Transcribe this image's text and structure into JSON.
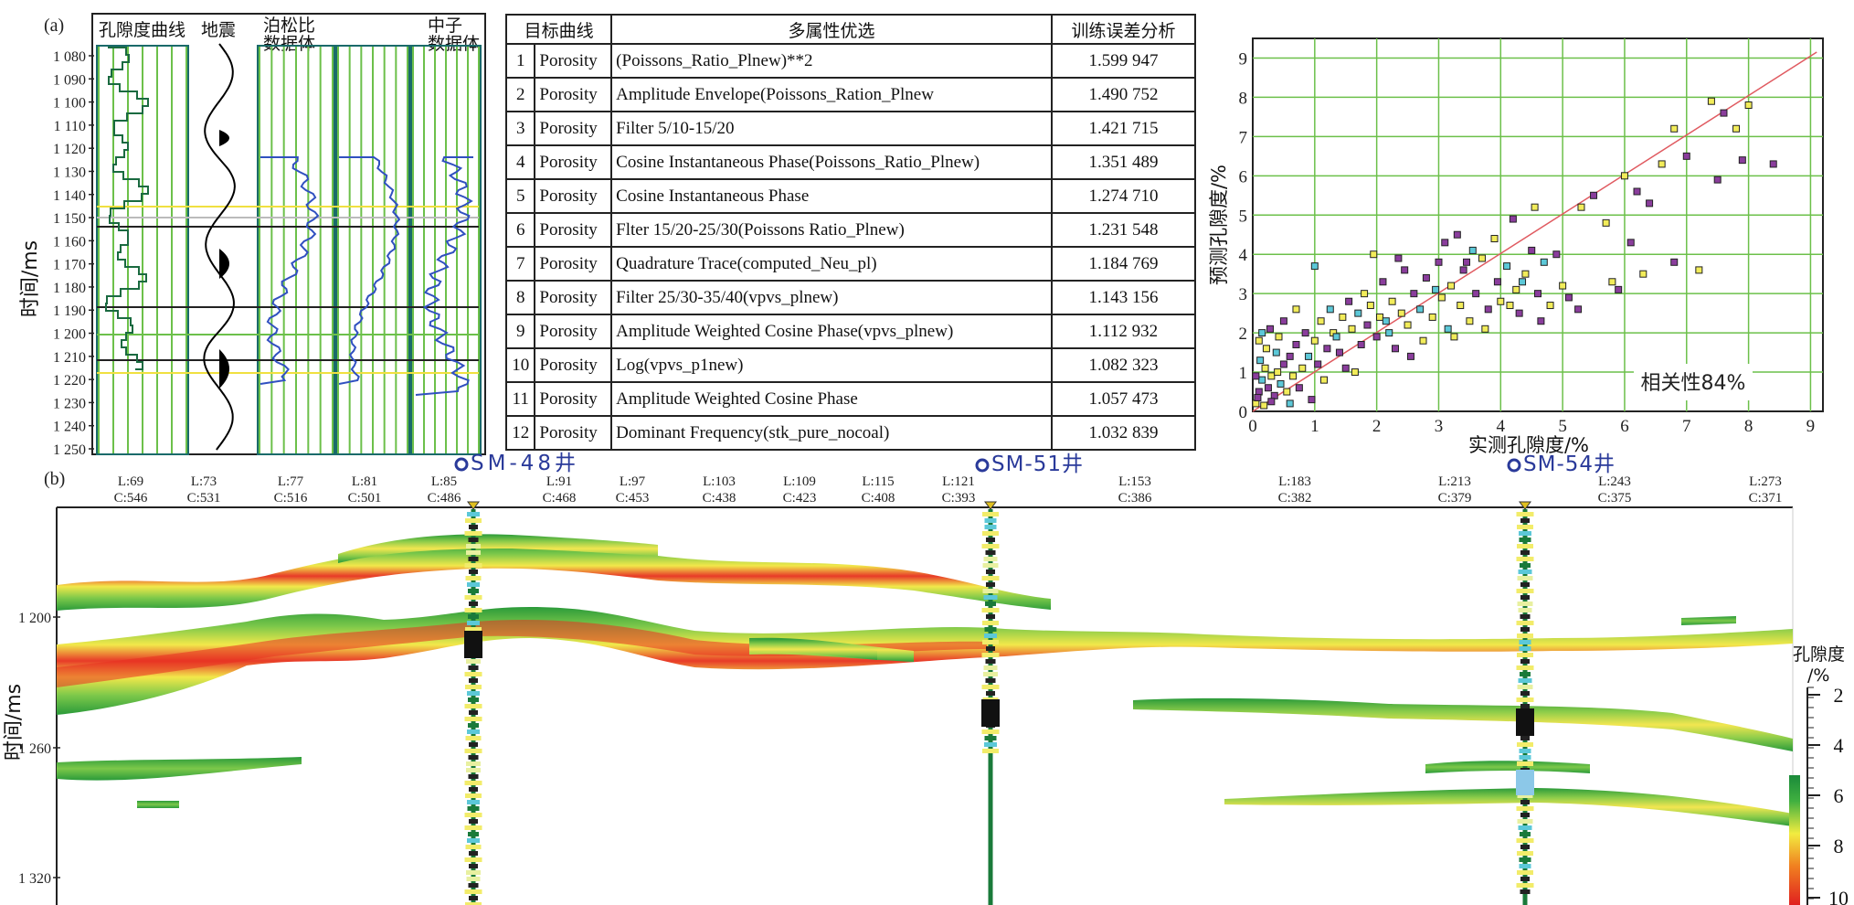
{
  "panel_a": {
    "label": "(a)",
    "log_headers": [
      "孔隙度曲线",
      "地震",
      "泊松比\n数据体",
      "中子\n数据体"
    ],
    "time_axis_label": "时间/ms",
    "time_ticks": [
      "1 080",
      "1 090",
      "1 100",
      "1 110",
      "1 120",
      "1 130",
      "1 140",
      "1 150",
      "1 160",
      "1 170",
      "1 180",
      "1 190",
      "1 200",
      "1 210",
      "1 220",
      "1 230",
      "1 240",
      "1 250"
    ]
  },
  "table": {
    "headers": [
      "目标曲线",
      "多属性优选",
      "训练误差分析"
    ],
    "rows": [
      {
        "n": "1",
        "curve": "Porosity",
        "attr": "(Poissons_Ratio_Plnew)**2",
        "err": "1.599 947"
      },
      {
        "n": "2",
        "curve": "Porosity",
        "attr": "Amplitude Envelope(Poissons_Ration_Plnew",
        "err": "1.490 752"
      },
      {
        "n": "3",
        "curve": "Porosity",
        "attr": "Filter 5/10-15/20",
        "err": "1.421 715"
      },
      {
        "n": "4",
        "curve": "Porosity",
        "attr": "Cosine Instantaneous Phase(Poissons_Ratio_Plnew)",
        "err": "1.351 489"
      },
      {
        "n": "5",
        "curve": "Porosity",
        "attr": "Cosine Instantaneous Phase",
        "err": "1.274 710"
      },
      {
        "n": "6",
        "curve": "Porosity",
        "attr": "Flter 15/20-25/30(Poissons Ratio_Plnew)",
        "err": "1.231 548"
      },
      {
        "n": "7",
        "curve": "Porosity",
        "attr": "Quadrature Trace(computed_Neu_pl)",
        "err": "1.184 769"
      },
      {
        "n": "8",
        "curve": "Porosity",
        "attr": "Filter 25/30-35/40(vpvs_plnew)",
        "err": "1.143 156"
      },
      {
        "n": "9",
        "curve": "Porosity",
        "attr": "Amplitude Weighted Cosine Phase(vpvs_plnew)",
        "err": "1.112 932"
      },
      {
        "n": "10",
        "curve": "Porosity",
        "attr": "Log(vpvs_p1new)",
        "err": "1.082 323"
      },
      {
        "n": "11",
        "curve": "Porosity",
        "attr": "Amplitude Weighted Cosine Phase",
        "err": "1.057 473"
      },
      {
        "n": "12",
        "curve": "Porosity",
        "attr": "Dominant Frequency(stk_pure_nocoal)",
        "err": "1.032 839"
      }
    ]
  },
  "chart_data": [
    {
      "type": "scatter",
      "xlabel": "实测孔隙度/%",
      "ylabel": "预测孔隙度/%",
      "xlim": [
        0,
        9.2
      ],
      "ylim": [
        0,
        9.5
      ],
      "xticks": [
        "0",
        "1",
        "2",
        "3",
        "4",
        "5",
        "6",
        "7",
        "8",
        "9"
      ],
      "yticks": [
        "0",
        "1",
        "2",
        "3",
        "4",
        "5",
        "6",
        "7",
        "8",
        "9"
      ],
      "grid": true,
      "annotation": "相关性84%",
      "fit_line": [
        [
          0,
          0
        ],
        [
          9.1,
          9.15
        ]
      ],
      "colors": {
        "yellow": "#f2ec5a",
        "purple": "#8a3d9c",
        "cyan": "#5cc8d8",
        "line": "#e05a60"
      },
      "points": [
        [
          0.05,
          0.2,
          "y"
        ],
        [
          0.1,
          0.5,
          "p"
        ],
        [
          0.15,
          0.8,
          "c"
        ],
        [
          0.2,
          1.1,
          "y"
        ],
        [
          0.08,
          0.35,
          "p"
        ],
        [
          0.25,
          0.6,
          "p"
        ],
        [
          0.3,
          0.9,
          "y"
        ],
        [
          0.12,
          1.3,
          "c"
        ],
        [
          0.35,
          0.4,
          "p"
        ],
        [
          0.4,
          1.0,
          "y"
        ],
        [
          0.05,
          0.9,
          "p"
        ],
        [
          0.18,
          0.15,
          "y"
        ],
        [
          0.45,
          0.7,
          "c"
        ],
        [
          0.5,
          1.2,
          "p"
        ],
        [
          0.22,
          1.6,
          "y"
        ],
        [
          0.3,
          0.25,
          "p"
        ],
        [
          0.55,
          0.5,
          "y"
        ],
        [
          0.6,
          1.4,
          "p"
        ],
        [
          0.1,
          1.8,
          "y"
        ],
        [
          0.38,
          1.5,
          "c"
        ],
        [
          0.65,
          0.9,
          "y"
        ],
        [
          0.7,
          1.7,
          "p"
        ],
        [
          0.8,
          1.1,
          "y"
        ],
        [
          0.85,
          2.0,
          "p"
        ],
        [
          0.9,
          1.4,
          "c"
        ],
        [
          0.75,
          0.6,
          "p"
        ],
        [
          1.0,
          1.8,
          "y"
        ],
        [
          1.05,
          1.2,
          "p"
        ],
        [
          1.1,
          2.3,
          "y"
        ],
        [
          1.2,
          1.6,
          "p"
        ],
        [
          1.25,
          2.6,
          "c"
        ],
        [
          1.3,
          2.0,
          "y"
        ],
        [
          1.4,
          1.5,
          "p"
        ],
        [
          1.45,
          2.4,
          "y"
        ],
        [
          1.5,
          1.1,
          "p"
        ],
        [
          1.55,
          2.8,
          "p"
        ],
        [
          1.6,
          2.1,
          "y"
        ],
        [
          1.7,
          2.5,
          "c"
        ],
        [
          1.75,
          1.7,
          "p"
        ],
        [
          1.8,
          3.0,
          "y"
        ],
        [
          1.85,
          2.2,
          "p"
        ],
        [
          1.9,
          2.7,
          "y"
        ],
        [
          2.0,
          1.9,
          "p"
        ],
        [
          2.05,
          2.4,
          "y"
        ],
        [
          2.1,
          3.3,
          "p"
        ],
        [
          2.2,
          2.0,
          "c"
        ],
        [
          2.25,
          2.8,
          "y"
        ],
        [
          2.3,
          1.6,
          "p"
        ],
        [
          2.4,
          2.5,
          "y"
        ],
        [
          2.45,
          3.6,
          "p"
        ],
        [
          2.5,
          2.2,
          "y"
        ],
        [
          2.6,
          3.0,
          "p"
        ],
        [
          2.7,
          2.6,
          "c"
        ],
        [
          2.75,
          1.8,
          "y"
        ],
        [
          2.8,
          3.4,
          "p"
        ],
        [
          2.9,
          2.4,
          "y"
        ],
        [
          3.0,
          3.8,
          "p"
        ],
        [
          3.05,
          2.9,
          "y"
        ],
        [
          3.1,
          4.3,
          "p"
        ],
        [
          3.15,
          2.1,
          "c"
        ],
        [
          3.2,
          3.2,
          "y"
        ],
        [
          3.3,
          4.5,
          "p"
        ],
        [
          3.35,
          2.7,
          "y"
        ],
        [
          3.4,
          3.6,
          "p"
        ],
        [
          3.5,
          2.3,
          "y"
        ],
        [
          3.55,
          4.1,
          "c"
        ],
        [
          3.6,
          3.0,
          "p"
        ],
        [
          3.7,
          3.9,
          "y"
        ],
        [
          3.8,
          2.6,
          "p"
        ],
        [
          3.9,
          4.4,
          "y"
        ],
        [
          3.95,
          3.3,
          "p"
        ],
        [
          4.0,
          2.8,
          "y"
        ],
        [
          4.1,
          3.7,
          "c"
        ],
        [
          4.2,
          4.9,
          "p"
        ],
        [
          4.25,
          3.1,
          "y"
        ],
        [
          4.3,
          2.5,
          "p"
        ],
        [
          4.4,
          3.5,
          "y"
        ],
        [
          4.5,
          4.1,
          "p"
        ],
        [
          4.55,
          5.2,
          "y"
        ],
        [
          4.6,
          3.0,
          "p"
        ],
        [
          4.7,
          3.8,
          "c"
        ],
        [
          4.8,
          2.7,
          "y"
        ],
        [
          4.9,
          4.0,
          "p"
        ],
        [
          5.0,
          3.2,
          "y"
        ],
        [
          5.1,
          2.9,
          "p"
        ],
        [
          5.5,
          5.5,
          "p"
        ],
        [
          5.7,
          4.8,
          "y"
        ],
        [
          5.9,
          3.1,
          "p"
        ],
        [
          6.0,
          6.0,
          "y"
        ],
        [
          6.1,
          4.3,
          "p"
        ],
        [
          6.3,
          3.5,
          "y"
        ],
        [
          6.4,
          5.3,
          "p"
        ],
        [
          6.6,
          6.3,
          "y"
        ],
        [
          6.8,
          3.8,
          "p"
        ],
        [
          7.0,
          6.5,
          "p"
        ],
        [
          7.2,
          3.6,
          "y"
        ],
        [
          7.4,
          7.9,
          "y"
        ],
        [
          7.5,
          5.9,
          "p"
        ],
        [
          7.6,
          7.6,
          "p"
        ],
        [
          7.8,
          7.2,
          "y"
        ],
        [
          7.9,
          6.4,
          "p"
        ],
        [
          8.0,
          7.8,
          "y"
        ],
        [
          8.4,
          6.3,
          "p"
        ],
        [
          6.8,
          7.2,
          "y"
        ],
        [
          6.2,
          5.6,
          "p"
        ],
        [
          5.3,
          5.2,
          "y"
        ],
        [
          4.35,
          3.3,
          "c"
        ],
        [
          3.45,
          3.8,
          "p"
        ],
        [
          2.15,
          2.3,
          "c"
        ],
        [
          1.35,
          1.9,
          "c"
        ],
        [
          0.95,
          0.3,
          "p"
        ],
        [
          1.15,
          0.8,
          "y"
        ],
        [
          0.6,
          0.2,
          "c"
        ],
        [
          0.42,
          1.9,
          "y"
        ],
        [
          0.28,
          2.1,
          "p"
        ],
        [
          1.65,
          1.0,
          "y"
        ],
        [
          2.55,
          1.4,
          "p"
        ],
        [
          3.25,
          1.9,
          "y"
        ],
        [
          2.95,
          3.1,
          "c"
        ],
        [
          3.75,
          2.1,
          "y"
        ],
        [
          4.65,
          2.3,
          "p"
        ],
        [
          4.15,
          2.7,
          "y"
        ],
        [
          5.25,
          2.6,
          "p"
        ],
        [
          5.8,
          3.3,
          "y"
        ],
        [
          2.35,
          3.9,
          "p"
        ],
        [
          1.95,
          4.0,
          "y"
        ],
        [
          1.0,
          3.7,
          "c"
        ],
        [
          0.7,
          2.6,
          "y"
        ],
        [
          0.5,
          2.3,
          "p"
        ],
        [
          0.15,
          2.0,
          "c"
        ]
      ]
    },
    {
      "type": "heatmap",
      "ylabel": "时间/ms",
      "yticks": [
        "1 200",
        "1 260",
        "1 320"
      ],
      "inline_labels": [
        {
          "l": "L:69",
          "c": "C:546"
        },
        {
          "l": "L:73",
          "c": "C:531"
        },
        {
          "l": "L:77",
          "c": "C:516"
        },
        {
          "l": "L:81",
          "c": "C:501"
        },
        {
          "l": "L:85",
          "c": "C:486"
        },
        {
          "l": "L:91",
          "c": "C:468"
        },
        {
          "l": "L:97",
          "c": "C:453"
        },
        {
          "l": "L:103",
          "c": "C:438"
        },
        {
          "l": "L:109",
          "c": "C:423"
        },
        {
          "l": "L:115",
          "c": "C:408"
        },
        {
          "l": "L:121",
          "c": "C:393"
        },
        {
          "l": "L:153",
          "c": "C:386"
        },
        {
          "l": "L:183",
          "c": "C:382"
        },
        {
          "l": "L:213",
          "c": "C:379"
        },
        {
          "l": "L:243",
          "c": "C:375"
        },
        {
          "l": "L:273",
          "c": "C:371"
        }
      ],
      "wells": [
        "SM-48井",
        "SM-51井",
        "SM-54井"
      ],
      "colorbar": {
        "label": "孔隙度\n/%",
        "ticks": [
          "2",
          "4",
          "6",
          "8",
          "10"
        ]
      }
    }
  ],
  "panel_b": {
    "label": "(b)"
  }
}
